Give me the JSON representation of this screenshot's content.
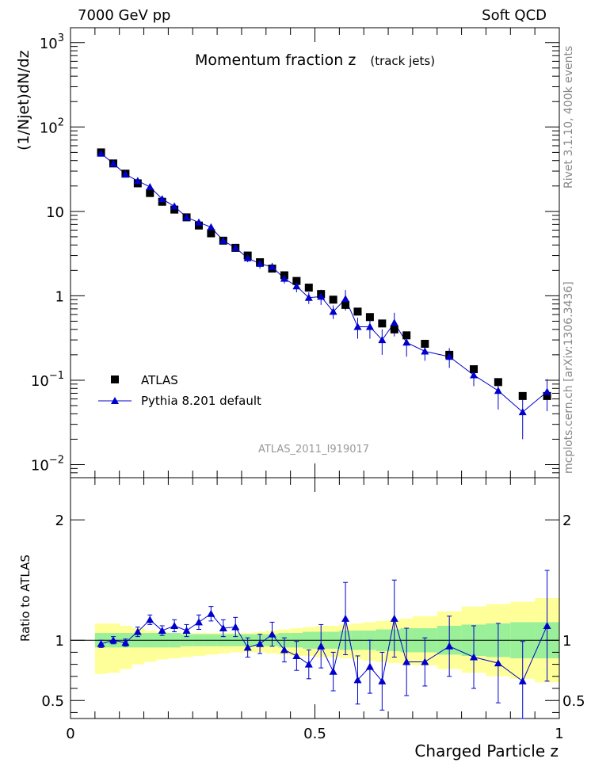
{
  "header": {
    "left": "7000 GeV pp",
    "right": "Soft QCD"
  },
  "side_labels": {
    "rivet": "Rivet 3.1.10,  400k events",
    "mcplots": "mcplots.cern.ch [arXiv:1306.3436]"
  },
  "plot_title": "Momentum fraction z",
  "plot_subtitle": "(track jets)",
  "watermark": "ATLAS_2011_I919017",
  "colors": {
    "data": "#000000",
    "mc": "#0000cc",
    "band_inner": "#99f099",
    "band_outer": "#ffff99",
    "ratio_line": "#000000"
  },
  "chart_data": [
    {
      "type": "scatter",
      "name": "main",
      "ylabel": "(1/Njet)dN/dz",
      "y_scale": "log",
      "xlim": [
        0,
        1
      ],
      "ylim": [
        0.007,
        1500
      ],
      "y_ticks": [
        {
          "value": 0.01,
          "base": "10",
          "exp": "−2"
        },
        {
          "value": 0.1,
          "base": "10",
          "exp": "−1"
        },
        {
          "value": 1,
          "base": "1",
          "exp": ""
        },
        {
          "value": 10,
          "base": "10",
          "exp": ""
        },
        {
          "value": 100,
          "base": "10",
          "exp": "2"
        },
        {
          "value": 1000,
          "base": "10",
          "exp": "3"
        }
      ],
      "legend_position": "bottom-left",
      "series": [
        {
          "name": "ATLAS",
          "marker": "square",
          "x": [
            0.0625,
            0.0875,
            0.1125,
            0.1375,
            0.1625,
            0.1875,
            0.2125,
            0.2375,
            0.2625,
            0.2875,
            0.3125,
            0.3375,
            0.3625,
            0.3875,
            0.4125,
            0.4375,
            0.4625,
            0.4875,
            0.5125,
            0.5375,
            0.5625,
            0.5875,
            0.6125,
            0.6375,
            0.6625,
            0.6875,
            0.725,
            0.775,
            0.825,
            0.875,
            0.925,
            0.975
          ],
          "values": [
            50,
            37,
            28,
            21.5,
            16.5,
            13,
            10.5,
            8.5,
            6.8,
            5.5,
            4.5,
            3.7,
            3.0,
            2.5,
            2.1,
            1.75,
            1.5,
            1.25,
            1.05,
            0.9,
            0.78,
            0.65,
            0.56,
            0.47,
            0.4,
            0.34,
            0.27,
            0.2,
            0.135,
            0.095,
            0.065,
            0.065
          ]
        },
        {
          "name": "Pythia 8.201 default",
          "marker": "triangle",
          "x": [
            0.0625,
            0.0875,
            0.1125,
            0.1375,
            0.1625,
            0.1875,
            0.2125,
            0.2375,
            0.2625,
            0.2875,
            0.3125,
            0.3375,
            0.3625,
            0.3875,
            0.4125,
            0.4375,
            0.4625,
            0.4875,
            0.5125,
            0.5375,
            0.5625,
            0.5875,
            0.6125,
            0.6375,
            0.6625,
            0.6875,
            0.725,
            0.775,
            0.825,
            0.875,
            0.925,
            0.975
          ],
          "values": [
            48.5,
            37,
            27.5,
            23,
            19.5,
            14,
            11.5,
            8.5,
            7.4,
            6.5,
            4.5,
            3.7,
            2.8,
            2.4,
            2.2,
            1.6,
            1.3,
            0.95,
            0.98,
            0.65,
            0.92,
            0.43,
            0.43,
            0.3,
            0.48,
            0.28,
            0.22,
            0.19,
            0.115,
            0.075,
            0.042,
            0.073
          ],
          "errors": [
            1.5,
            1.0,
            0.8,
            0.8,
            0.8,
            0.6,
            0.5,
            0.4,
            0.4,
            0.4,
            0.3,
            0.3,
            0.3,
            0.3,
            0.25,
            0.2,
            0.2,
            0.15,
            0.2,
            0.12,
            0.25,
            0.12,
            0.12,
            0.1,
            0.15,
            0.09,
            0.05,
            0.05,
            0.03,
            0.03,
            0.022,
            0.03
          ]
        }
      ]
    },
    {
      "type": "scatter",
      "name": "ratio",
      "xlabel": "Charged Particle z",
      "ylabel": "Ratio to ATLAS",
      "xlim": [
        0,
        1
      ],
      "ylim": [
        0.35,
        2.35
      ],
      "y_ticks": [
        0.5,
        1,
        2
      ],
      "x_ticks": [
        0,
        0.5,
        1
      ],
      "bands": {
        "x_edges": [
          0.05,
          0.075,
          0.1,
          0.125,
          0.15,
          0.175,
          0.2,
          0.225,
          0.25,
          0.275,
          0.3,
          0.325,
          0.35,
          0.375,
          0.4,
          0.425,
          0.45,
          0.475,
          0.5,
          0.525,
          0.55,
          0.575,
          0.6,
          0.625,
          0.65,
          0.675,
          0.7,
          0.75,
          0.8,
          0.85,
          0.9,
          0.95,
          1.0
        ],
        "inner_low": [
          0.94,
          0.94,
          0.94,
          0.94,
          0.94,
          0.94,
          0.94,
          0.95,
          0.95,
          0.95,
          0.95,
          0.95,
          0.95,
          0.95,
          0.95,
          0.94,
          0.94,
          0.93,
          0.93,
          0.93,
          0.92,
          0.92,
          0.92,
          0.91,
          0.91,
          0.9,
          0.9,
          0.88,
          0.87,
          0.86,
          0.85,
          0.85
        ],
        "inner_high": [
          1.06,
          1.06,
          1.06,
          1.06,
          1.06,
          1.06,
          1.06,
          1.05,
          1.05,
          1.05,
          1.05,
          1.05,
          1.05,
          1.05,
          1.05,
          1.06,
          1.06,
          1.07,
          1.07,
          1.07,
          1.08,
          1.08,
          1.08,
          1.09,
          1.09,
          1.1,
          1.1,
          1.12,
          1.13,
          1.14,
          1.15,
          1.15
        ],
        "outer_low": [
          0.72,
          0.73,
          0.76,
          0.8,
          0.82,
          0.84,
          0.85,
          0.86,
          0.87,
          0.88,
          0.89,
          0.9,
          0.9,
          0.9,
          0.89,
          0.88,
          0.87,
          0.87,
          0.86,
          0.86,
          0.85,
          0.84,
          0.83,
          0.82,
          0.81,
          0.8,
          0.79,
          0.76,
          0.73,
          0.7,
          0.68,
          0.65
        ],
        "outer_high": [
          1.14,
          1.14,
          1.12,
          1.1,
          1.08,
          1.07,
          1.06,
          1.06,
          1.06,
          1.06,
          1.06,
          1.06,
          1.06,
          1.07,
          1.08,
          1.09,
          1.1,
          1.11,
          1.12,
          1.12,
          1.13,
          1.14,
          1.15,
          1.16,
          1.17,
          1.18,
          1.2,
          1.24,
          1.28,
          1.3,
          1.32,
          1.35
        ]
      },
      "series": [
        {
          "name": "Pythia 8.201 default",
          "x": [
            0.0625,
            0.0875,
            0.1125,
            0.1375,
            0.1625,
            0.1875,
            0.2125,
            0.2375,
            0.2625,
            0.2875,
            0.3125,
            0.3375,
            0.3625,
            0.3875,
            0.4125,
            0.4375,
            0.4625,
            0.4875,
            0.5125,
            0.5375,
            0.5625,
            0.5875,
            0.6125,
            0.6375,
            0.6625,
            0.6875,
            0.725,
            0.775,
            0.825,
            0.875,
            0.925,
            0.975
          ],
          "values": [
            0.97,
            1.0,
            0.98,
            1.07,
            1.17,
            1.08,
            1.12,
            1.08,
            1.15,
            1.22,
            1.1,
            1.11,
            0.94,
            0.97,
            1.05,
            0.92,
            0.87,
            0.8,
            0.95,
            0.74,
            1.18,
            0.67,
            0.78,
            0.66,
            1.18,
            0.82,
            0.82,
            0.95,
            0.86,
            0.81,
            0.66,
            1.12
          ],
          "errors": [
            0.03,
            0.03,
            0.03,
            0.04,
            0.04,
            0.04,
            0.05,
            0.05,
            0.06,
            0.06,
            0.07,
            0.08,
            0.08,
            0.08,
            0.1,
            0.1,
            0.12,
            0.12,
            0.18,
            0.16,
            0.3,
            0.2,
            0.22,
            0.24,
            0.32,
            0.28,
            0.2,
            0.25,
            0.26,
            0.33,
            0.33,
            0.46
          ]
        }
      ]
    }
  ]
}
